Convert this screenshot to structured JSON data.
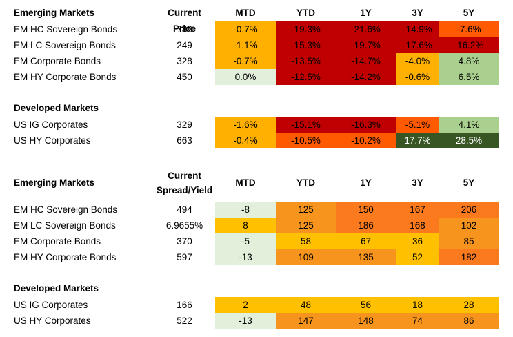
{
  "colors": {
    "red": "#c00000",
    "dark_orange": "#ff5a00",
    "orange": "#f7941d",
    "amber": "#ffb000",
    "yellow": "#ffc000",
    "pale_green": "#e2efda",
    "green": "#a9d08e",
    "dark_green": "#375623",
    "white": "#ffffff"
  },
  "columns": [
    "MTD",
    "YTD",
    "1Y",
    "3Y",
    "5Y"
  ],
  "price_table": {
    "em_header": "Emerging Markets",
    "price_header": "Current Price",
    "em_rows": [
      {
        "name": "EM HC Sovereign Bonds",
        "value": "788",
        "cells": [
          "-0.7%",
          "-19.3%",
          "-21.6%",
          "-14.9%",
          "-7.6%"
        ]
      },
      {
        "name": "EM LC Sovereign Bonds",
        "value": "249",
        "cells": [
          "-1.1%",
          "-15.3%",
          "-19.7%",
          "-17.6%",
          "-16.2%"
        ]
      },
      {
        "name": "EM Corporate Bonds",
        "value": "328",
        "cells": [
          "-0.7%",
          "-13.5%",
          "-14.7%",
          "-4.0%",
          "4.8%"
        ]
      },
      {
        "name": "EM HY Corporate Bonds",
        "value": "450",
        "cells": [
          "0.0%",
          "-12.5%",
          "-14.2%",
          "-0.6%",
          "6.5%"
        ]
      }
    ],
    "dm_header": "Developed Markets",
    "dm_rows": [
      {
        "name": "US IG Corporates",
        "value": "329",
        "cells": [
          "-1.6%",
          "-15.1%",
          "-16.3%",
          "-5.1%",
          "4.1%"
        ]
      },
      {
        "name": "US HY Corporates",
        "value": "663",
        "cells": [
          "-0.4%",
          "-10.5%",
          "-10.2%",
          "17.7%",
          "28.5%"
        ]
      }
    ]
  },
  "spread_table": {
    "em_header": "Emerging Markets",
    "spread_header_line1": "Current",
    "spread_header_line2": "Spread/Yield",
    "em_rows": [
      {
        "name": "EM HC Sovereign Bonds",
        "value": "494",
        "cells": [
          "-8",
          "125",
          "150",
          "167",
          "206"
        ]
      },
      {
        "name": "EM LC Sovereign Bonds",
        "value": "6.9655%",
        "cells": [
          "8",
          "125",
          "186",
          "168",
          "102"
        ]
      },
      {
        "name": "EM Corporate Bonds",
        "value": "370",
        "cells": [
          "-5",
          "58",
          "67",
          "36",
          "85"
        ]
      },
      {
        "name": "EM HY Corporate Bonds",
        "value": "597",
        "cells": [
          "-13",
          "109",
          "135",
          "52",
          "182"
        ]
      }
    ],
    "dm_header": "Developed Markets",
    "dm_rows": [
      {
        "name": "US IG Corporates",
        "value": "166",
        "cells": [
          "2",
          "48",
          "56",
          "18",
          "28"
        ]
      },
      {
        "name": "US HY Corporates",
        "value": "522",
        "cells": [
          "-13",
          "147",
          "148",
          "74",
          "86"
        ]
      }
    ]
  }
}
